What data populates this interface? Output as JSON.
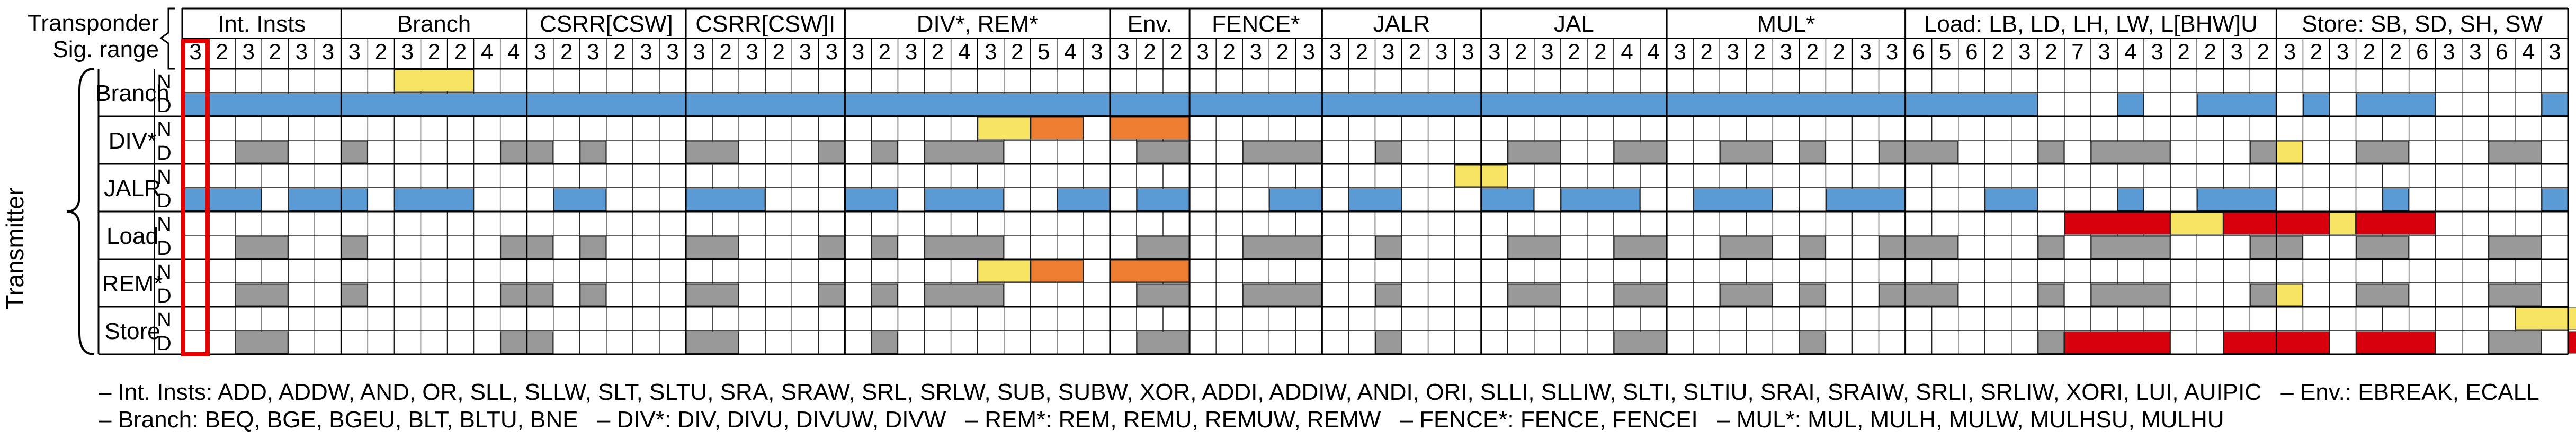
{
  "header": {
    "transponder_label": "Transponder",
    "sig_range_label": "Sig. range"
  },
  "y_axis_title": "Transmitter",
  "colors": {
    "Branch": "#5b9bd5",
    "DIV*": "#999999",
    "JALR": "#5b9bd5",
    "Load": "#999999",
    "REM*": "#999999",
    "Store": "#999999",
    "yellow": "#f7e463",
    "orange": "#ed7d31",
    "red": "#d9000d",
    "highlight_border": "#e60000"
  },
  "groups": [
    {
      "label": "Int. Insts",
      "sig": [
        3,
        2,
        3,
        2,
        3,
        3
      ]
    },
    {
      "label": "Branch",
      "sig": [
        3,
        2,
        3,
        2,
        2,
        4,
        4
      ]
    },
    {
      "label": "CSRR[CSW]",
      "sig": [
        3,
        2,
        3,
        2,
        3,
        3
      ]
    },
    {
      "label": "CSRR[CSW]I",
      "sig": [
        3,
        2,
        3,
        2,
        3,
        3
      ]
    },
    {
      "label": "DIV*, REM*",
      "sig": [
        3,
        2,
        3,
        2,
        4,
        3,
        2,
        5,
        4,
        3
      ]
    },
    {
      "label": "Env.",
      "sig": [
        3,
        2,
        2
      ]
    },
    {
      "label": "FENCE*",
      "sig": [
        3,
        2,
        3,
        2,
        3
      ]
    },
    {
      "label": "JALR",
      "sig": [
        3,
        2,
        3,
        2,
        3,
        3
      ]
    },
    {
      "label": "JAL",
      "sig": [
        3,
        2,
        3,
        2,
        2,
        4,
        4
      ]
    },
    {
      "label": "MUL*",
      "sig": [
        3,
        2,
        3,
        2,
        3,
        2,
        2,
        3,
        3
      ]
    },
    {
      "label": "Load: LB, LD, LH, LW, L[BHW]U",
      "sig": [
        6,
        5,
        6,
        2,
        3,
        2,
        7,
        3,
        4,
        3,
        2,
        2,
        3,
        2
      ]
    },
    {
      "label": "Store: SB, SD, SH, SW",
      "sig": [
        3,
        2,
        3,
        2,
        2,
        6,
        3,
        3,
        6,
        4,
        3
      ]
    }
  ],
  "rows": [
    {
      "name": "Branch",
      "N": "",
      "D": ""
    },
    {
      "name": "DIV*",
      "N": "",
      "D": ""
    },
    {
      "name": "JALR",
      "N": "",
      "D": ""
    },
    {
      "name": "Load",
      "N": "",
      "D": ""
    },
    {
      "name": "REM*",
      "N": "",
      "D": ""
    },
    {
      "name": "Store",
      "N": "",
      "D": ""
    }
  ],
  "sublabels": {
    "n": "N",
    "d": "D"
  },
  "legend": {
    "line1": [
      "– Int. Insts: ADD, ADDW, AND, OR, SLL, SLLW, SLT, SLTU, SRA, SRAW, SRL, SRLW, SUB, SUBW, XOR, ADDI, ADDIW, ANDI, ORI, SLLI, SLLIW, SLTI, SLTIU, SRAI, SRAIW, SRLI, SRLIW, XORI, LUI, AUIPIC",
      "– Env.: EBREAK, ECALL"
    ],
    "line2": [
      "– Branch: BEQ, BGE, BGEU, BLT, BLTU, BNE",
      "– DIV*: DIV, DIVU, DIVUW, DIVW",
      "– REM*: REM, REMU, REMUW, REMW",
      "– FENCE*: FENCE, FENCEI",
      "– MUL*: MUL, MULH, MULW, MULHSU, MULHU"
    ]
  }
}
